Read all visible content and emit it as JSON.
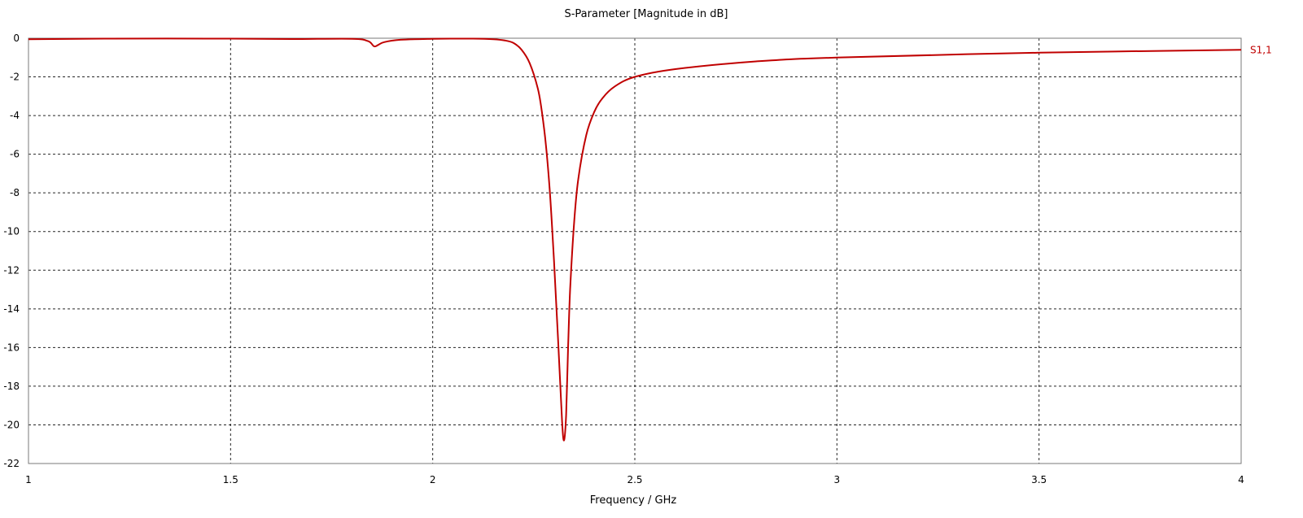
{
  "chart_data": {
    "type": "line",
    "title": "S-Parameter [Magnitude in dB]",
    "xlabel": "Frequency / GHz",
    "ylabel": "",
    "xlim": [
      1,
      4
    ],
    "ylim": [
      -22,
      0
    ],
    "xticks": [
      "1",
      "1.5",
      "2",
      "2.5",
      "3",
      "3.5",
      "4"
    ],
    "yticks": [
      "0",
      "-2",
      "-4",
      "-6",
      "-8",
      "-10",
      "-12",
      "-14",
      "-16",
      "-18",
      "-20",
      "-22"
    ],
    "grid": true,
    "series": [
      {
        "name": "S1,1",
        "color": "#c00000",
        "x": [
          1.0,
          1.2,
          1.5,
          1.65,
          1.8,
          1.84,
          1.855,
          1.865,
          1.88,
          1.92,
          2.0,
          2.1,
          2.15,
          2.18,
          2.2,
          2.22,
          2.24,
          2.26,
          2.27,
          2.28,
          2.29,
          2.3,
          2.31,
          2.32,
          2.325,
          2.33,
          2.335,
          2.34,
          2.35,
          2.36,
          2.38,
          2.4,
          2.42,
          2.45,
          2.5,
          2.6,
          2.8,
          3.0,
          3.5,
          4.0
        ],
        "y": [
          -0.05,
          -0.02,
          -0.02,
          -0.04,
          -0.03,
          -0.15,
          -0.42,
          -0.35,
          -0.2,
          -0.08,
          -0.03,
          -0.02,
          -0.05,
          -0.12,
          -0.25,
          -0.6,
          -1.3,
          -2.6,
          -3.8,
          -5.5,
          -8.0,
          -11.5,
          -15.5,
          -19.8,
          -20.8,
          -19.5,
          -16.0,
          -13.0,
          -9.5,
          -7.3,
          -5.0,
          -3.8,
          -3.1,
          -2.5,
          -2.0,
          -1.6,
          -1.2,
          -1.0,
          -0.75,
          -0.6
        ]
      }
    ]
  }
}
